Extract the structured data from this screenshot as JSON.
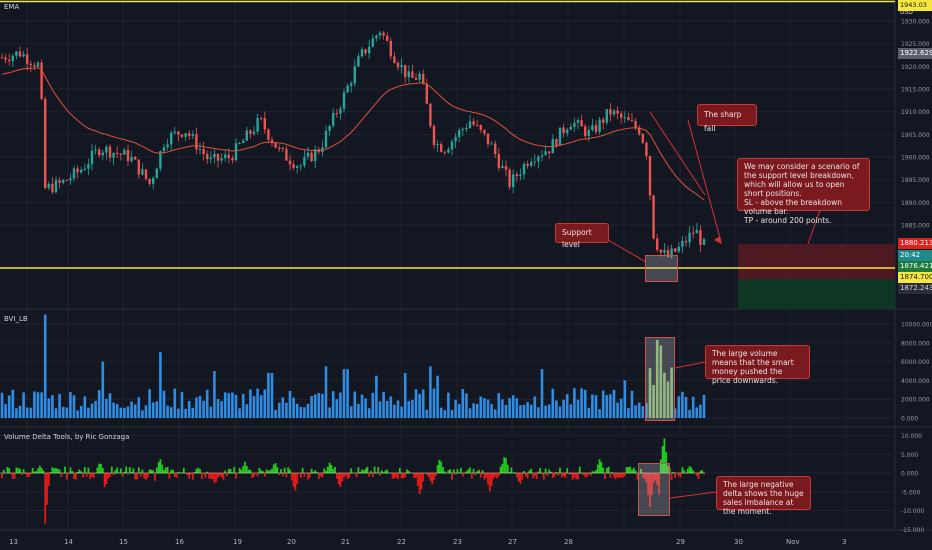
{
  "colors": {
    "bg": "#131722",
    "up": "#26a69a",
    "down": "#ef5350",
    "ema": "#e0513a",
    "support": "#f5e642",
    "volume": "#2f8de4",
    "delta_pos": "#22c91e",
    "delta_neg": "#e01b1b",
    "callout_bg": "#7a1a1f"
  },
  "main": {
    "indicator_label": "EMA",
    "currency": "USD",
    "top_tag": "1943.03",
    "price_ticks": [
      "1930.000",
      "1925.000",
      "1920.000",
      "1915.000",
      "1910.000",
      "1905.000",
      "1900.000",
      "1895.000",
      "1890.000",
      "1885.000"
    ],
    "price_tags": {
      "ema": "1922.629",
      "red": "1880.213",
      "teal": "20:42",
      "green": "1876.421",
      "yellow": "1874.700",
      "dark": "1872.243"
    }
  },
  "volume_panel": {
    "label": "BVI_LB",
    "ticks": [
      "10000.000",
      "8000.000",
      "6000.000",
      "4000.000",
      "2000.000",
      "0.000"
    ]
  },
  "delta_panel": {
    "label": "Volume Delta Tools, by Ric Gonzaga",
    "ticks": [
      "10.000",
      "5.000",
      "0.000",
      "-5.000",
      "-10.000",
      "-15.000"
    ]
  },
  "x_axis": [
    "13",
    "14",
    "15",
    "16",
    "19",
    "20",
    "21",
    "22",
    "23",
    "27",
    "28",
    "29",
    "30",
    "Nov",
    "3"
  ],
  "annotations": {
    "sharp_fall": "The sharp fall",
    "support": "Support level",
    "scenario": "We may consider a scenario of the support level breakdown, which will allow us to open short positions.\nSL - above the breakdown volume bar.\nTP - around 200 points.",
    "volume": "The large volume means that the smart money pushed the price downwards.",
    "delta": "The large negative delta shows the huge sales imbalance at the moment."
  }
}
